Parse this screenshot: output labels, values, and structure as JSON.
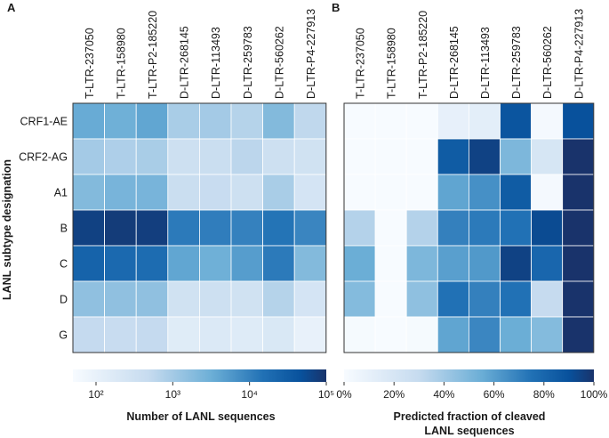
{
  "chart_data": [
    {
      "panel": "A",
      "type": "heatmap",
      "scale": "log",
      "columns": [
        "T-LTR-237050",
        "T-LTR-158980",
        "T-LTR-P2-185220",
        "D-LTR-268145",
        "D-LTR-113493",
        "D-LTR-259783",
        "D-LTR-560262",
        "D-LTR-P4-227913"
      ],
      "rows": [
        "CRF1-AE",
        "CRF2-AG",
        "A1",
        "B",
        "C",
        "D",
        "G"
      ],
      "ylabel": "LANL subtype designation",
      "values": [
        [
          3500,
          3000,
          4000,
          900,
          1000,
          700,
          2000,
          550
        ],
        [
          1000,
          800,
          900,
          350,
          400,
          600,
          350,
          300
        ],
        [
          2000,
          2500,
          2500,
          400,
          450,
          350,
          900,
          250
        ],
        [
          70000,
          80000,
          75000,
          12000,
          11000,
          10000,
          14000,
          9000
        ],
        [
          25000,
          20000,
          18000,
          4000,
          3000,
          5000,
          12000,
          2000
        ],
        [
          1500,
          1500,
          1500,
          300,
          350,
          300,
          700,
          250
        ],
        [
          500,
          450,
          500,
          150,
          180,
          160,
          200,
          100
        ]
      ],
      "colorbar": {
        "label": "Number of LANL sequences",
        "ticks": [
          "10²",
          "10³",
          "10⁴",
          "10⁵"
        ],
        "tick_values": [
          100,
          1000,
          10000,
          100000
        ],
        "range": [
          50,
          100000
        ]
      }
    },
    {
      "panel": "B",
      "type": "heatmap",
      "scale": "linear",
      "columns": [
        "T-LTR-237050",
        "T-LTR-158980",
        "T-LTR-P2-185220",
        "D-LTR-268145",
        "D-LTR-113493",
        "D-LTR-259783",
        "D-LTR-560262",
        "D-LTR-P4-227913"
      ],
      "rows": [
        "CRF1-AE",
        "CRF2-AG",
        "A1",
        "B",
        "C",
        "D",
        "G"
      ],
      "values_percent": [
        [
          0,
          0,
          0,
          10,
          12,
          88,
          2,
          90
        ],
        [
          0,
          0,
          0,
          85,
          95,
          50,
          20,
          100
        ],
        [
          0,
          0,
          0,
          58,
          65,
          85,
          2,
          100
        ],
        [
          35,
          0,
          35,
          70,
          72,
          75,
          92,
          100
        ],
        [
          55,
          0,
          50,
          60,
          62,
          95,
          80,
          100
        ],
        [
          48,
          0,
          45,
          75,
          70,
          75,
          30,
          100
        ],
        [
          1,
          0,
          1,
          58,
          68,
          55,
          48,
          100
        ]
      ],
      "colorbar": {
        "label_line1": "Predicted fraction of cleaved",
        "label_line2": "LANL sequences",
        "ticks": [
          "0%",
          "20%",
          "40%",
          "60%",
          "80%",
          "100%"
        ],
        "tick_values": [
          0,
          20,
          40,
          60,
          80,
          100
        ],
        "range": [
          0,
          100
        ]
      }
    }
  ],
  "colors": {
    "low": "#f7fbff",
    "mid1": "#c6dbef",
    "mid2": "#6baed6",
    "mid3": "#2171b5",
    "high": "#08519c",
    "top": "#19336b",
    "grid": "#ffffff",
    "border": "#333333"
  }
}
